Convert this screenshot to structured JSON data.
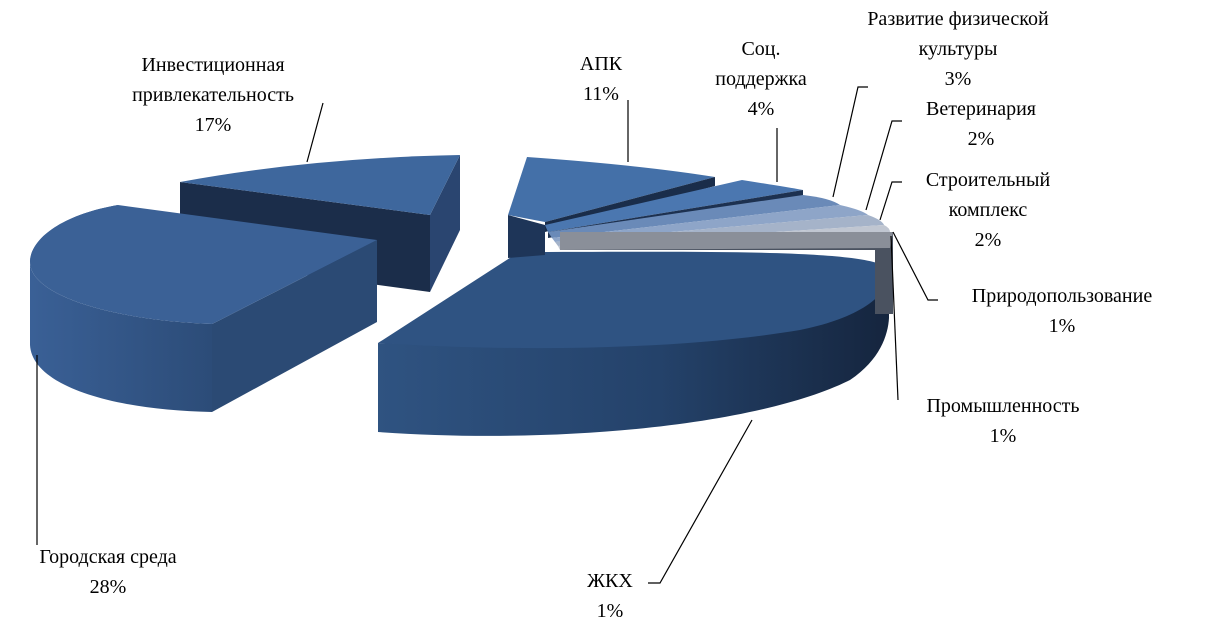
{
  "chart_data": {
    "type": "pie",
    "variant": "3d-exploded",
    "unit": "%",
    "slices": [
      {
        "name": "АПК",
        "value_label": "11%",
        "value": 11,
        "color": "#3f68a0"
      },
      {
        "name": "Соц. поддержка",
        "value_label": "4%",
        "value": 4,
        "color": "#4a73aa"
      },
      {
        "name": "Развитие физической культуры",
        "value_label": "3%",
        "value": 3,
        "color": "#6d8cb9"
      },
      {
        "name": "Ветеринария",
        "value_label": "2%",
        "value": 2,
        "color": "#8fa5c8"
      },
      {
        "name": "Строительный комплекс",
        "value_label": "2%",
        "value": 2,
        "color": "#a9b6cb"
      },
      {
        "name": "Природопользование",
        "value_label": "1%",
        "value": 1,
        "color": "#c3c9d3"
      },
      {
        "name": "Промышленность",
        "value_label": "1%",
        "value": 1,
        "color": "#8a8f99"
      },
      {
        "name": "ЖКХ",
        "value_label": "1%",
        "value": 1,
        "color": "#2e4f7c"
      },
      {
        "name": "Городская среда",
        "value_label": "28%",
        "value": 28,
        "color": "#3a5f92"
      },
      {
        "name": "Инвестиционная привлекательность",
        "value_label": "17%",
        "value": 17,
        "color": "#3c649a"
      }
    ],
    "labels": {
      "apk": {
        "lines": [
          "АПК",
          "11%"
        ]
      },
      "soc": {
        "lines": [
          "Соц.",
          "поддержка",
          "4%"
        ]
      },
      "fiz": {
        "lines": [
          "Развитие физической",
          "культуры",
          "3%"
        ]
      },
      "vet": {
        "lines": [
          "Ветеринария",
          "2%"
        ]
      },
      "stroy": {
        "lines": [
          "Строительный",
          "комплекс",
          "2%"
        ]
      },
      "prirod": {
        "lines": [
          "Природопользование",
          "1%"
        ]
      },
      "prom": {
        "lines": [
          "Промышленность",
          "1%"
        ]
      },
      "zhkh": {
        "lines": [
          "ЖКХ",
          "1%"
        ]
      },
      "gor": {
        "lines": [
          "Городская среда",
          "28%"
        ]
      },
      "inv": {
        "lines": [
          "Инвестиционная",
          "привлекательность",
          "17%"
        ]
      }
    }
  }
}
